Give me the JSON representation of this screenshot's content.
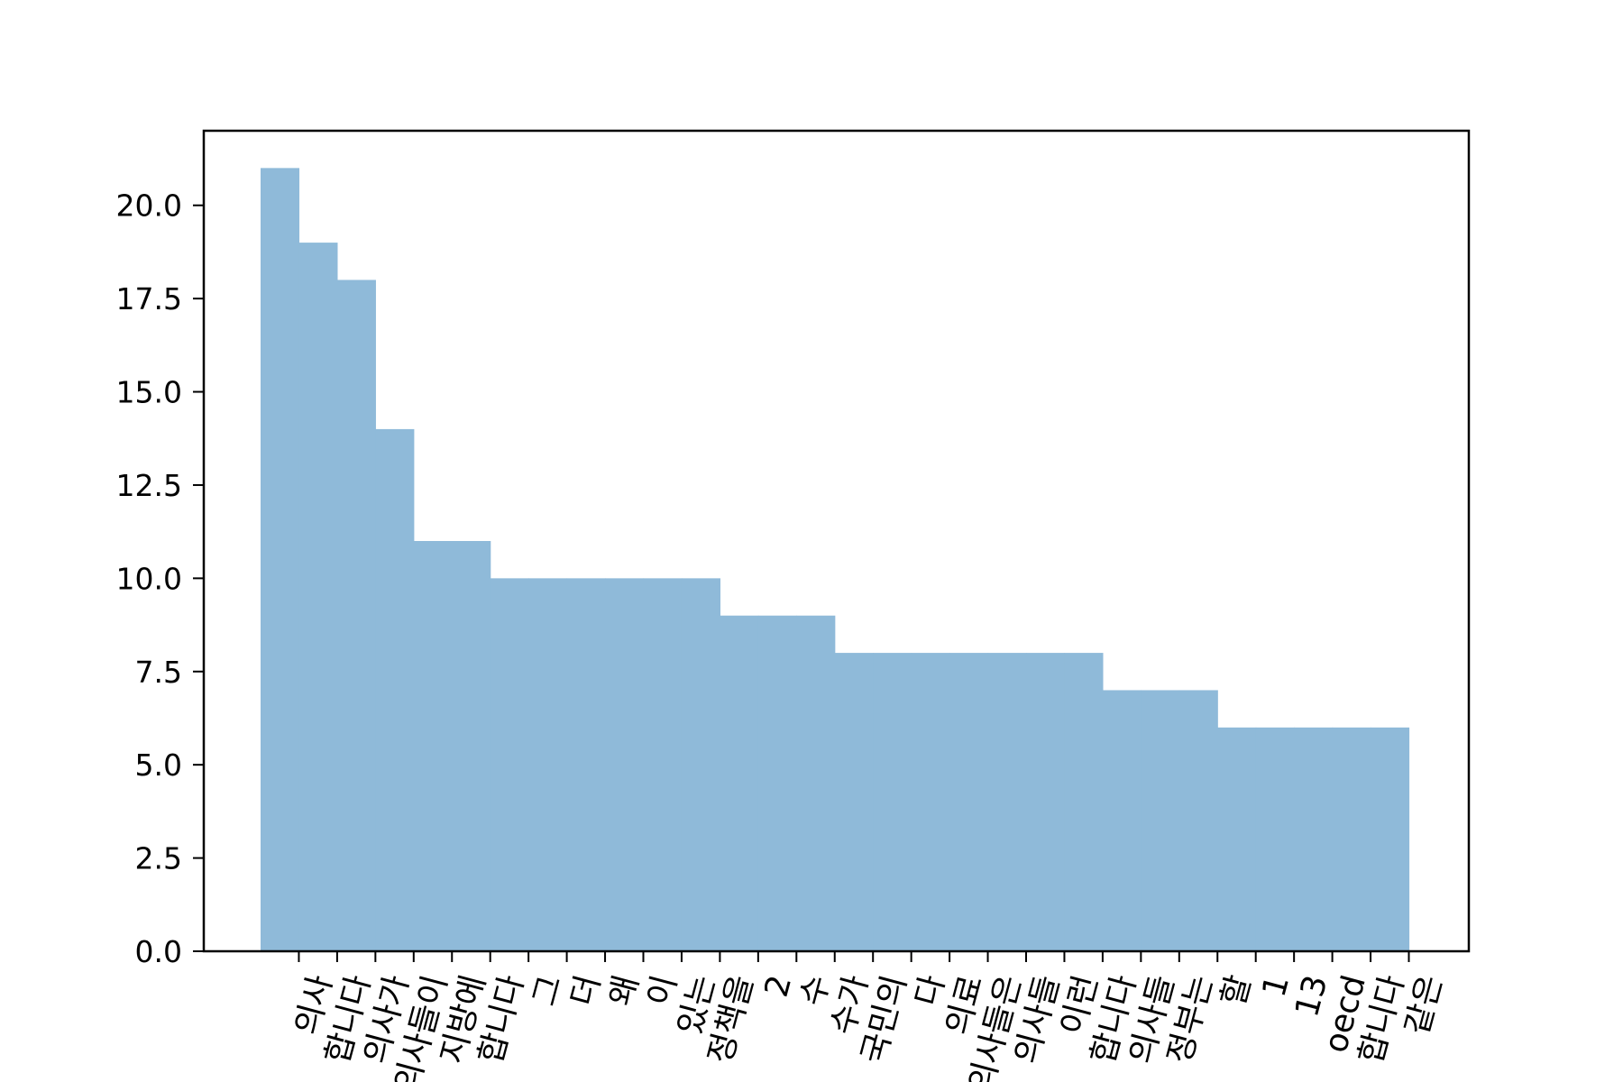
{
  "chart_data": {
    "type": "bar",
    "categories": [
      "의사",
      "합니다",
      "의사가",
      "의사들이",
      "지방에",
      "합니다",
      "그",
      "더",
      "왜",
      "이",
      "있는",
      "정책을",
      "2",
      "수",
      "수가",
      "국민의",
      "다",
      "의료",
      "의사들은",
      "의사들",
      "이런",
      "합니다",
      "의사들",
      "정부는",
      "할",
      "1",
      "13",
      "oecd",
      "합니다",
      "같은"
    ],
    "values": [
      21,
      19,
      18,
      14,
      11,
      11,
      10,
      10,
      10,
      10,
      10,
      10,
      9,
      9,
      9,
      8,
      8,
      8,
      8,
      8,
      8,
      8,
      7,
      7,
      7,
      6,
      6,
      6,
      6,
      6
    ],
    "yticks": [
      "0.0",
      "2.5",
      "5.0",
      "7.5",
      "10.0",
      "12.5",
      "15.0",
      "17.5",
      "20.0"
    ],
    "ylim": [
      0,
      22
    ],
    "bar_color": "#8fbad9",
    "grid": false
  }
}
